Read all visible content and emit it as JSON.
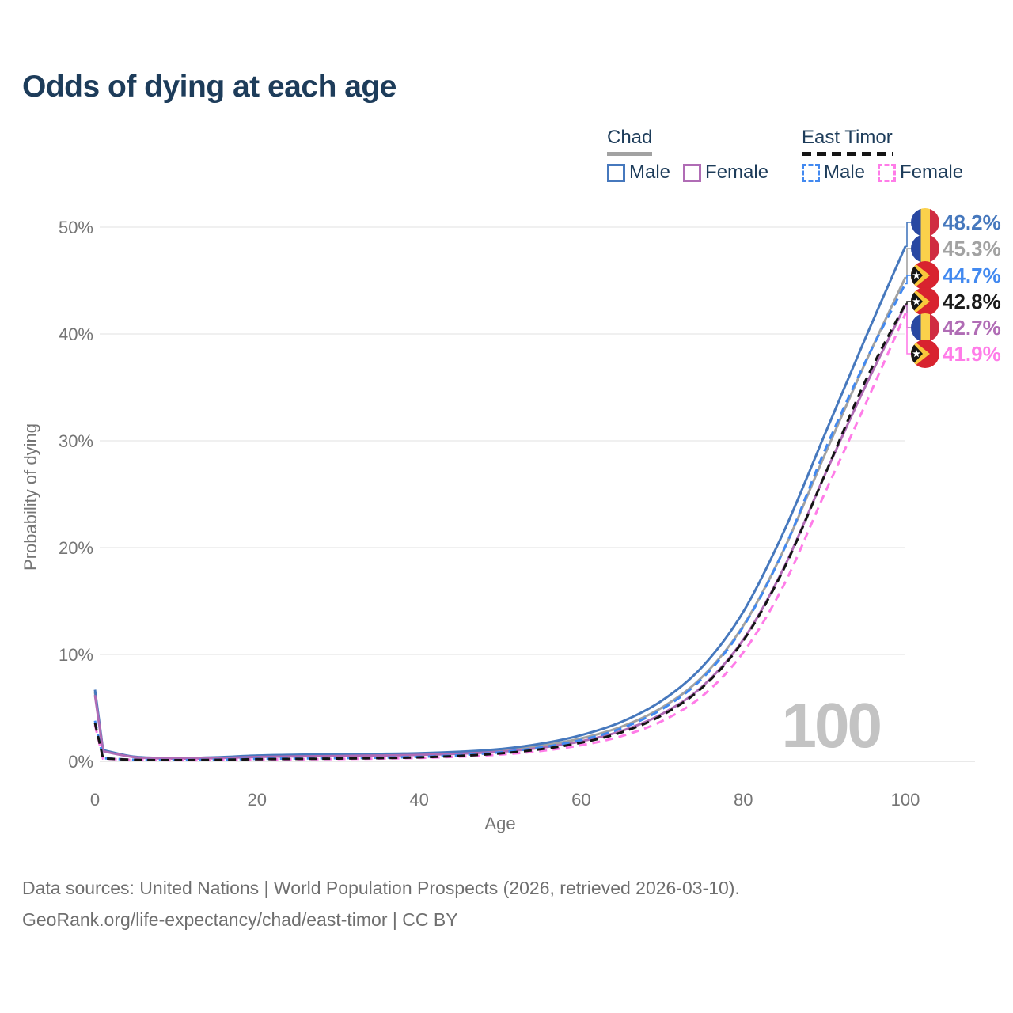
{
  "title": "Odds of dying at each age",
  "watermark": "100",
  "legend": {
    "groups": [
      {
        "name": "Chad",
        "underline_style": "solid",
        "underline_color": "#a2a2a2",
        "items": [
          {
            "label": "Male",
            "color": "#4678bd",
            "dashed": false
          },
          {
            "label": "Female",
            "color": "#b06cb5",
            "dashed": false
          }
        ]
      },
      {
        "name": "East Timor",
        "underline_style": "dashed",
        "underline_color": "#141414",
        "items": [
          {
            "label": "Male",
            "color": "#4289f0",
            "dashed": true
          },
          {
            "label": "Female",
            "color": "#ff7ce8",
            "dashed": true
          }
        ]
      }
    ]
  },
  "axes": {
    "x": {
      "label": "Age",
      "ticks": [
        0,
        20,
        40,
        60,
        80,
        100
      ],
      "min": 0,
      "max": 100
    },
    "y": {
      "label": "Probability of dying",
      "tick_labels": [
        "0%",
        "10%",
        "20%",
        "30%",
        "40%",
        "50%"
      ],
      "min": 0,
      "max": 50
    }
  },
  "end_labels": [
    {
      "text": "48.2%",
      "color": "#4678bd",
      "flag": "chad",
      "series": "Chad Male"
    },
    {
      "text": "45.3%",
      "color": "#a2a2a2",
      "flag": "chad",
      "series": "Chad Both sexes"
    },
    {
      "text": "44.7%",
      "color": "#4289f0",
      "flag": "east-timor",
      "series": "East Timor Male"
    },
    {
      "text": "42.8%",
      "color": "#1a1a1a",
      "flag": "east-timor",
      "series": "East Timor Both sexes"
    },
    {
      "text": "42.7%",
      "color": "#b06cb5",
      "flag": "chad",
      "series": "Chad Female"
    },
    {
      "text": "41.9%",
      "color": "#ff7ce8",
      "flag": "east-timor",
      "series": "East Timor Female"
    }
  ],
  "footer": {
    "line1": "Data sources: United Nations | World Population Prospects (2026, retrieved 2026-03-10).",
    "line2": "GeoRank.org/life-expectancy/chad/east-timor | CC BY"
  },
  "chart_data": {
    "type": "line",
    "title": "Odds of dying at each age",
    "xlabel": "Age",
    "ylabel": "Probability of dying",
    "unit": "%",
    "x": [
      0,
      1,
      5,
      10,
      15,
      20,
      25,
      30,
      35,
      40,
      45,
      50,
      55,
      60,
      65,
      70,
      75,
      80,
      85,
      90,
      95,
      100
    ],
    "xlim": [
      0,
      100
    ],
    "ylim": [
      0,
      50
    ],
    "grid": true,
    "legend_position": "top-right",
    "series": [
      {
        "name": "Chad Both sexes",
        "color": "#a2a2a2",
        "dash": "solid",
        "values": [
          6.45,
          1.0,
          0.4,
          0.28,
          0.34,
          0.48,
          0.54,
          0.58,
          0.62,
          0.68,
          0.8,
          1.02,
          1.45,
          2.15,
          3.25,
          5.05,
          7.95,
          12.7,
          19.8,
          28.6,
          37.2,
          45.3
        ]
      },
      {
        "name": "Chad Male",
        "color": "#4678bd",
        "dash": "solid",
        "values": [
          6.7,
          1.05,
          0.42,
          0.3,
          0.38,
          0.55,
          0.62,
          0.66,
          0.7,
          0.76,
          0.9,
          1.15,
          1.65,
          2.45,
          3.7,
          5.7,
          8.9,
          14.0,
          21.5,
          30.5,
          39.5,
          48.2
        ]
      },
      {
        "name": "Chad Female",
        "color": "#b06cb5",
        "dash": "solid",
        "values": [
          6.2,
          0.95,
          0.38,
          0.26,
          0.3,
          0.41,
          0.46,
          0.5,
          0.55,
          0.6,
          0.71,
          0.9,
          1.27,
          1.88,
          2.85,
          4.45,
          7.05,
          11.4,
          18.1,
          26.7,
          35.0,
          42.7
        ]
      },
      {
        "name": "East Timor Male",
        "color": "#4289f0",
        "dash": "dashed",
        "values": [
          3.8,
          0.3,
          0.15,
          0.12,
          0.16,
          0.24,
          0.27,
          0.3,
          0.34,
          0.42,
          0.58,
          0.85,
          1.3,
          2.0,
          3.1,
          4.9,
          7.8,
          12.6,
          19.8,
          29.0,
          37.3,
          44.7
        ]
      },
      {
        "name": "East Timor Female",
        "color": "#ff7ce8",
        "dash": "dashed",
        "values": [
          3.4,
          0.26,
          0.13,
          0.1,
          0.12,
          0.17,
          0.19,
          0.22,
          0.26,
          0.32,
          0.44,
          0.64,
          0.97,
          1.51,
          2.36,
          3.78,
          6.15,
          10.2,
          16.5,
          25.0,
          33.3,
          41.9
        ]
      },
      {
        "name": "East Timor Both sexes",
        "color": "#141414",
        "dash": "dashed",
        "values": [
          3.6,
          0.28,
          0.14,
          0.11,
          0.14,
          0.2,
          0.23,
          0.26,
          0.3,
          0.37,
          0.51,
          0.74,
          1.13,
          1.75,
          2.72,
          4.32,
          6.95,
          11.3,
          18.0,
          26.7,
          35.5,
          42.8
        ]
      }
    ]
  }
}
